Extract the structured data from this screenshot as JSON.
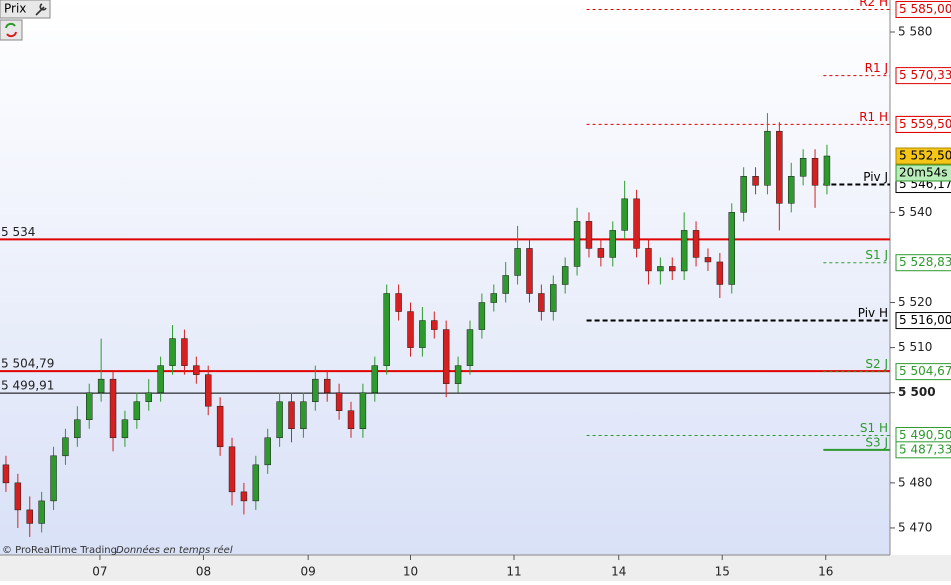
{
  "chart_data": {
    "type": "candlestick",
    "button": "Prix",
    "footer": [
      "© ProRealTime Trading",
      "Données en temps réel"
    ],
    "xlim": [
      -0.5,
      74.3
    ],
    "xticks": [
      {
        "value": 7.9,
        "label": "07"
      },
      {
        "value": 16.6,
        "label": "08"
      },
      {
        "value": 25.4,
        "label": "09"
      },
      {
        "value": 34.0,
        "label": "10"
      },
      {
        "value": 42.7,
        "label": "11"
      },
      {
        "value": 51.5,
        "label": "14"
      },
      {
        "value": 60.2,
        "label": "15"
      },
      {
        "value": 68.9,
        "label": "16"
      }
    ],
    "ylim": [
      5464.0,
      5587.1
    ],
    "yticks": [
      {
        "value": 5470,
        "label": "5 470"
      },
      {
        "value": 5480,
        "label": "5 480"
      },
      {
        "value": 5500,
        "label": "5 500"
      },
      {
        "value": 5510,
        "label": "5 510"
      },
      {
        "value": 5520,
        "label": "5 520"
      },
      {
        "value": 5540,
        "label": "5 540"
      },
      {
        "value": 5580,
        "label": "5 580"
      }
    ],
    "up_color": "#2e9a2e",
    "down_color": "#d42020",
    "open": [
      5484,
      5480,
      5474,
      5471,
      5476,
      5486,
      5490,
      5494,
      5500,
      5503,
      5490,
      5494,
      5498,
      5500,
      5506,
      5512,
      5506,
      5504,
      5497,
      5488,
      5478,
      5476,
      5484,
      5490,
      5498,
      5492,
      5498,
      5503,
      5500,
      5496,
      5492,
      5500,
      5506,
      5522,
      5518,
      5510,
      5516,
      5514,
      5502,
      5506,
      5514,
      5520,
      5522,
      5526,
      5532,
      5522,
      5518,
      5524,
      5528,
      5538,
      5532,
      5530,
      5536,
      5543,
      5532,
      5527,
      5528,
      5527,
      5536,
      5530,
      5529,
      5524,
      5540,
      5548,
      5546,
      5558,
      5542,
      5548,
      5552,
      5546
    ],
    "high": [
      5486,
      5482,
      5477,
      5478,
      5488,
      5492,
      5497,
      5502,
      5512,
      5505,
      5496,
      5500,
      5503,
      5508,
      5515,
      5514,
      5508,
      5506,
      5499,
      5490,
      5480,
      5486,
      5492,
      5500,
      5500,
      5500,
      5506,
      5505,
      5502,
      5498,
      5502,
      5508,
      5524,
      5524,
      5520,
      5519,
      5518,
      5516,
      5508,
      5516,
      5522,
      5524,
      5529,
      5537,
      5534,
      5524,
      5526,
      5530,
      5541,
      5540,
      5534,
      5538,
      5547,
      5545,
      5534,
      5530,
      5530,
      5540,
      5538,
      5532,
      5531,
      5542,
      5550,
      5550,
      5562,
      5560,
      5551,
      5554,
      5554,
      5555
    ],
    "low": [
      5478,
      5470,
      5468,
      5469,
      5474,
      5484,
      5488,
      5492,
      5498,
      5487,
      5488,
      5492,
      5496,
      5498,
      5504,
      5504,
      5502,
      5495,
      5486,
      5475,
      5473,
      5474,
      5482,
      5488,
      5489,
      5490,
      5496,
      5498,
      5494,
      5490,
      5490,
      5498,
      5504,
      5516,
      5508,
      5508,
      5512,
      5499,
      5500,
      5504,
      5512,
      5518,
      5520,
      5524,
      5520,
      5516,
      5516,
      5522,
      5526,
      5530,
      5528,
      5528,
      5534,
      5530,
      5524,
      5524,
      5525,
      5525,
      5528,
      5527,
      5521,
      5522,
      5538,
      5544,
      5544,
      5536,
      5540,
      5546,
      5541,
      5544
    ],
    "close": [
      5480,
      5474,
      5471,
      5476,
      5486,
      5490,
      5494,
      5500,
      5503,
      5490,
      5494,
      5498,
      5500,
      5506,
      5512,
      5506,
      5504,
      5497,
      5488,
      5478,
      5476,
      5484,
      5490,
      5498,
      5492,
      5498,
      5503,
      5500,
      5496,
      5492,
      5500,
      5506,
      5522,
      5518,
      5510,
      5516,
      5514,
      5502,
      5506,
      5514,
      5520,
      5522,
      5526,
      5532,
      5522,
      5518,
      5524,
      5528,
      5538,
      5532,
      5530,
      5536,
      5543,
      5532,
      5527,
      5528,
      5527,
      5536,
      5530,
      5529,
      5524,
      5540,
      5548,
      5546,
      5558,
      5542,
      5548,
      5552,
      5546,
      5552.5
    ],
    "hlines": [
      {
        "value": 5534,
        "label": "5 534",
        "color": "#e00000"
      },
      {
        "value": 5504.79,
        "label": "5 504,79",
        "color": "#e00000"
      },
      {
        "value": 5499.91,
        "label": "5 499,91",
        "color": "#000000"
      }
    ],
    "levels": [
      {
        "name": "R2 H",
        "value": 5585,
        "label": "5 585,00",
        "color": "#e00000",
        "scope": "H"
      },
      {
        "name": "R1 J",
        "value": 5570.33,
        "label": "5 570,33",
        "color": "#e00000",
        "scope": "J"
      },
      {
        "name": "R1 H",
        "value": 5559.5,
        "label": "5 559,50",
        "color": "#e00000",
        "scope": "H"
      },
      {
        "name": "Piv J",
        "value": 5546.17,
        "label": "5 546,17",
        "color": "#000000",
        "scope": "J"
      },
      {
        "name": "S1 J",
        "value": 5528.83,
        "label": "5 528,83",
        "color": "#2e9a2e",
        "scope": "J"
      },
      {
        "name": "Piv H",
        "value": 5516.0,
        "label": "5 516,00",
        "color": "#000000",
        "scope": "H"
      },
      {
        "name": "S2 J",
        "value": 5504.67,
        "label": "5 504,67",
        "color": "#2e9a2e",
        "scope": "J"
      },
      {
        "name": "S1 H",
        "value": 5490.5,
        "label": "5 490,50",
        "color": "#2e9a2e",
        "scope": "H"
      },
      {
        "name": "S3 J",
        "value": 5487.33,
        "label": "5 487,33",
        "color": "#2e9a2e",
        "scope": "J"
      }
    ],
    "price_tags": [
      {
        "value": 5559.5,
        "label": "5 559,50",
        "color": "#e00000",
        "fill": "#ffffff"
      },
      {
        "value": 5552.5,
        "label": "5 552,50",
        "color": "#b08a00",
        "fill": "#f5c518"
      }
    ],
    "timer": "20m54s"
  }
}
